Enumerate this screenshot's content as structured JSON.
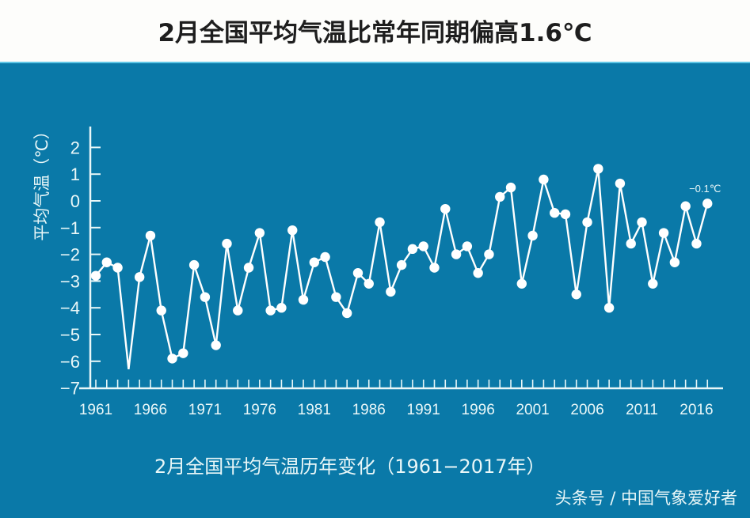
{
  "title": "2月全国平均气温比常年同期偏高1.6℃",
  "subtitle": "2月全国平均气温历年变化（1961−2017年）",
  "credit": "头条号 / 中国气象爱好者",
  "colors": {
    "background_panel": "#0a79a8",
    "line": "#ffffff",
    "text": "#e9f7f8"
  },
  "chart_data": {
    "type": "line",
    "title": "2月全国平均气温比常年同期偏高1.6℃",
    "subtitle": "2月全国平均气温历年变化（1961−2017年）",
    "xlabel": "",
    "ylabel": "平均气温（℃）",
    "ylim": [
      -7,
      2
    ],
    "yticks": [
      2,
      1,
      0,
      -1,
      -2,
      -3,
      -4,
      -5,
      -6,
      -7
    ],
    "ytick_labels": [
      "2",
      "1",
      "0",
      "−1",
      "−2",
      "−3",
      "−4",
      "−5",
      "−6",
      "−7"
    ],
    "xticks": [
      1961,
      1966,
      1971,
      1976,
      1981,
      1986,
      1991,
      1996,
      2001,
      2006,
      2011,
      2016
    ],
    "grid": false,
    "annotation": {
      "year": 2017,
      "text": "−0.1℃"
    },
    "x": [
      1961,
      1962,
      1963,
      1964,
      1965,
      1966,
      1967,
      1968,
      1969,
      1970,
      1971,
      1972,
      1973,
      1974,
      1975,
      1976,
      1977,
      1978,
      1979,
      1980,
      1981,
      1982,
      1983,
      1984,
      1985,
      1986,
      1987,
      1988,
      1989,
      1990,
      1991,
      1992,
      1993,
      1994,
      1995,
      1996,
      1997,
      1998,
      1999,
      2000,
      2001,
      2002,
      2003,
      2004,
      2005,
      2006,
      2007,
      2008,
      2009,
      2010,
      2011,
      2012,
      2013,
      2014,
      2015,
      2016,
      2017
    ],
    "series": [
      {
        "name": "2月全国平均气温",
        "values": [
          -2.8,
          -2.3,
          -2.5,
          -6.3,
          -2.85,
          -1.3,
          -4.1,
          -5.9,
          -5.7,
          -2.4,
          -3.6,
          -5.4,
          -1.6,
          -4.1,
          -2.5,
          -1.2,
          -4.1,
          -4.0,
          -1.1,
          -3.7,
          -2.3,
          -2.1,
          -3.6,
          -4.2,
          -2.7,
          -3.1,
          -0.8,
          -3.4,
          -2.4,
          -1.8,
          -1.7,
          -2.5,
          -0.3,
          -2.0,
          -1.7,
          -2.7,
          -2.0,
          0.15,
          0.5,
          -3.1,
          -1.3,
          0.8,
          -0.45,
          -0.5,
          -3.5,
          -0.8,
          1.2,
          -4.0,
          0.65,
          -1.6,
          -0.8,
          -3.1,
          -1.2,
          -2.3,
          -0.2,
          -1.6,
          -0.1
        ],
        "markers_hidden_years": [
          1964
        ]
      }
    ]
  }
}
